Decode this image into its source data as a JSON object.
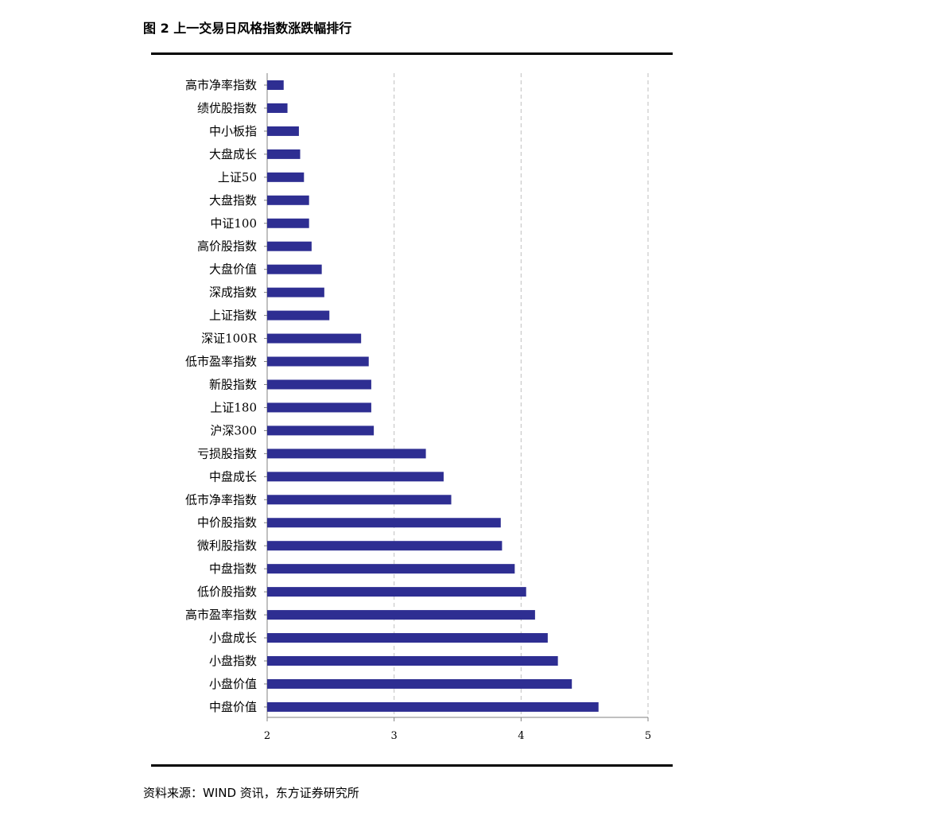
{
  "figure": {
    "title": "图 2  上一交易日风格指数涨跌幅排行",
    "source": "资料来源：WIND 资讯，东方证券研究所"
  },
  "colors": {
    "bar": "#2E2E92",
    "grid": "#BFBFBF",
    "axis": "#808080",
    "rule": "#000000"
  },
  "chart_data": {
    "type": "bar",
    "orientation": "horizontal",
    "title": "",
    "xlabel": "",
    "ylabel": "",
    "xlim": [
      2,
      5
    ],
    "xticks": [
      2,
      3,
      4,
      5
    ],
    "grid": "vertical dashed",
    "legend": "none",
    "categories": [
      "高市净率指数",
      "绩优股指数",
      "中小板指",
      "大盘成长",
      "上证50",
      "大盘指数",
      "中证100",
      "高价股指数",
      "大盘价值",
      "深成指数",
      "上证指数",
      "深证100R",
      "低市盈率指数",
      "新股指数",
      "上证180",
      "沪深300",
      "亏损股指数",
      "中盘成长",
      "低市净率指数",
      "中价股指数",
      "微利股指数",
      "中盘指数",
      "低价股指数",
      "高市盈率指数",
      "小盘成长",
      "小盘指数",
      "小盘价值",
      "中盘价值"
    ],
    "values": [
      2.13,
      2.16,
      2.25,
      2.26,
      2.29,
      2.33,
      2.33,
      2.35,
      2.43,
      2.45,
      2.49,
      2.74,
      2.8,
      2.82,
      2.82,
      2.84,
      3.25,
      3.39,
      3.45,
      3.84,
      3.85,
      3.95,
      4.04,
      4.11,
      4.21,
      4.29,
      4.4,
      4.61
    ]
  }
}
